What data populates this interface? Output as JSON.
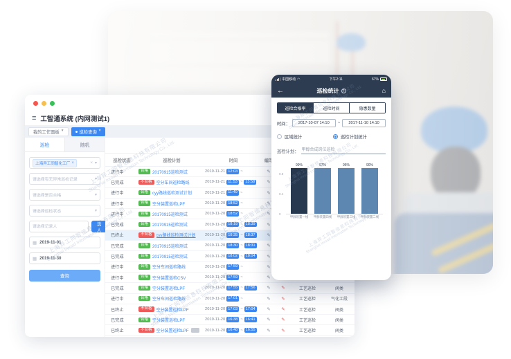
{
  "watermark": {
    "line1": "上海异工同智信息科技有限公司",
    "line2": "Shanghai Inroad Information Technology Co., Ltd."
  },
  "desktop": {
    "window_title": "工智通系统 (内网测试1)",
    "nav_tabs": [
      {
        "label": "我的工作面板",
        "active": false
      },
      {
        "label": "巡检查询",
        "active": true
      }
    ],
    "sidebar": {
      "tabs": [
        {
          "label": "巡检",
          "active": true
        },
        {
          "label": "随机",
          "active": false
        }
      ],
      "org_tag": {
        "label": "上海异工同智化工厂",
        "close": "×"
      },
      "selects": [
        {
          "placeholder": "请选择有无异常巡检记录"
        },
        {
          "placeholder": "请选择是否合格"
        },
        {
          "placeholder": "请选择巡检状态"
        }
      ],
      "recorder": {
        "placeholder": "请选择记录人",
        "button": "选人"
      },
      "date_start": "2019-11-01",
      "date_end": "2019-11-30",
      "query_button": "查询"
    },
    "table": {
      "headers": [
        "巡检状态",
        "巡检计划",
        "时间",
        "编写",
        "",
        "",
        ""
      ],
      "rows": [
        {
          "status": "进行中",
          "result": "合格",
          "plan": "20170915巡检测试",
          "date": "2019-11-21",
          "start": "12:03",
          "end": "",
          "type": "",
          "area": "",
          "highlight": false,
          "suffix_badge": false
        },
        {
          "status": "已完成",
          "result": "不合格",
          "plan": "空分车间巡检路线",
          "date": "2019-11-21",
          "start": "11:53",
          "end": "13:58",
          "type": "",
          "area": "",
          "highlight": false,
          "suffix_badge": false
        },
        {
          "status": "进行中",
          "result": "合格",
          "plan": "cyy路线巡检测试计划",
          "date": "2019-11-21",
          "start": "11:49",
          "end": "",
          "type": "",
          "area": "",
          "highlight": false,
          "suffix_badge": false
        },
        {
          "status": "进行中",
          "result": "合格",
          "plan": "空分装置巡检LPF",
          "date": "2019-11-20",
          "start": "18:52",
          "end": "",
          "type": "",
          "area": "",
          "highlight": false,
          "suffix_badge": false
        },
        {
          "status": "进行中",
          "result": "合格",
          "plan": "20170915巡检测试",
          "date": "2019-11-20",
          "start": "18:52",
          "end": "",
          "type": "",
          "area": "",
          "highlight": false,
          "suffix_badge": false
        },
        {
          "status": "已完成",
          "result": "合格",
          "plan": "20170915巡检测试",
          "date": "2019-11-20",
          "start": "18:18",
          "end": "18:39",
          "type": "",
          "area": "",
          "highlight": false,
          "suffix_badge": false
        },
        {
          "status": "已终止",
          "result": "不合格",
          "plan": "cyy路线巡检测试计划",
          "date": "2019-11-20",
          "start": "18:35",
          "end": "18:37",
          "type": "",
          "area": "",
          "highlight": true,
          "suffix_badge": false
        },
        {
          "status": "已完成",
          "result": "合格",
          "plan": "20170915巡检测试",
          "date": "2019-11-20",
          "start": "18:30",
          "end": "18:31",
          "type": "",
          "area": "",
          "highlight": false,
          "suffix_badge": false
        },
        {
          "status": "已完成",
          "result": "合格",
          "plan": "20170915巡检测试",
          "date": "2019-11-20",
          "start": "18:02",
          "end": "18:04",
          "type": "",
          "area": "",
          "highlight": false,
          "suffix_badge": false
        },
        {
          "status": "进行中",
          "result": "合格",
          "plan": "空分车间巡检路线",
          "date": "2019-11-20",
          "start": "17:59",
          "end": "",
          "type": "",
          "area": "",
          "highlight": false,
          "suffix_badge": false
        },
        {
          "status": "进行中",
          "result": "合格",
          "plan": "空分装置巡检CSV",
          "date": "2019-11-20",
          "start": "17:59",
          "end": "",
          "type": "",
          "area": "",
          "highlight": false,
          "suffix_badge": false
        },
        {
          "status": "已完成",
          "result": "合格",
          "plan": "空分装置巡检LPF",
          "date": "2019-11-20",
          "start": "17:55",
          "end": "17:56",
          "type": "工艺巡检",
          "area": "阀类",
          "highlight": false,
          "suffix_badge": false
        },
        {
          "status": "进行中",
          "result": "合格",
          "plan": "空分车间巡检路线",
          "date": "2019-11-20",
          "start": "17:01",
          "end": "",
          "type": "工艺巡检",
          "area": "气化工段",
          "highlight": false,
          "suffix_badge": false
        },
        {
          "status": "已终止",
          "result": "不合格",
          "plan": "空分装置巡检LPF",
          "date": "2019-11-20",
          "start": "17:03",
          "end": "17:04",
          "type": "工艺巡检",
          "area": "阀类",
          "highlight": false,
          "suffix_badge": false
        },
        {
          "status": "已完成",
          "result": "合格",
          "plan": "空分装置巡检LPF",
          "date": "2019-11-20",
          "start": "16:38",
          "end": "16:41",
          "type": "工艺巡检",
          "area": "阀类",
          "highlight": false,
          "suffix_badge": false
        },
        {
          "status": "已终止",
          "result": "不合格",
          "plan": "空分装置巡检LPF",
          "date": "2019-11-20",
          "start": "16:48",
          "end": "16:55",
          "type": "工艺巡检",
          "area": "阀类",
          "highlight": false,
          "suffix_badge": true
        }
      ]
    }
  },
  "phone": {
    "status_bar": {
      "carrier": "中国移动",
      "time": "下午2:11",
      "battery": "67%"
    },
    "nav_title": "巡检统计",
    "segments": [
      {
        "label": "巡检合格率",
        "active": true
      },
      {
        "label": "巡检时间",
        "active": false
      },
      {
        "label": "隐患数量",
        "active": false
      }
    ],
    "time_label": "时间：",
    "time_from": "2017-10-07 14:10",
    "time_sep": "~",
    "time_to": "2017-11-10 14:10",
    "radios": [
      {
        "label": "区域统计",
        "selected": false
      },
      {
        "label": "巡检计划统计",
        "selected": true
      }
    ],
    "plan_label": "巡检计划：",
    "plan_value": "甲醇合成岗位巡检"
  },
  "chart_data": {
    "type": "bar",
    "title": "巡检合格率",
    "categories": [
      "甲醇装置一线",
      "甲醇装置四线",
      "甲醇装置三线",
      "甲醇装置二线"
    ],
    "values": [
      0.99,
      0.97,
      0.96,
      0.9
    ],
    "value_labels": [
      "99%",
      "97%",
      "96%",
      "90%"
    ],
    "xlabel": "",
    "ylabel": "",
    "ylim": [
      0,
      1
    ],
    "yticks": [
      0.8,
      0.4,
      0
    ],
    "grid": false,
    "legend": false,
    "bar_colors": [
      "#27394f",
      "#5d87b0",
      "#5d87b0",
      "#5d87b0"
    ]
  },
  "colors": {
    "accent": "#3a87f2",
    "green": "#55b954",
    "red": "#ee5b5b",
    "navy": "#2d3c50"
  }
}
